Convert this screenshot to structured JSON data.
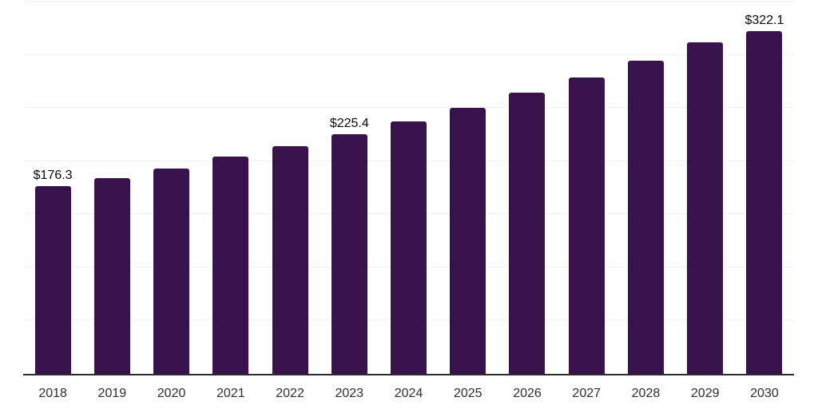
{
  "chart_data": {
    "type": "bar",
    "title": "",
    "xlabel": "",
    "ylabel": "",
    "categories": [
      "2018",
      "2019",
      "2020",
      "2021",
      "2022",
      "2023",
      "2024",
      "2025",
      "2026",
      "2027",
      "2028",
      "2029",
      "2030"
    ],
    "values": [
      176.3,
      184.2,
      193.2,
      204.0,
      213.8,
      225.4,
      237.5,
      250.1,
      264.3,
      278.6,
      294.6,
      312.0,
      322.1
    ],
    "data_labels": [
      "$176.3",
      "",
      "",
      "",
      "",
      "$225.4",
      "",
      "",
      "",
      "",
      "",
      "",
      "$322.1"
    ],
    "value_prefix": "$",
    "ylim": [
      0,
      350
    ],
    "grid_step": 50,
    "grid": "horizontal",
    "legend": "none",
    "y_axis_labels": "none",
    "colors": {
      "bar": "#38124a",
      "gridline": "#f1f1f3",
      "axis_line": "#2a2a33",
      "data_label_text": "#0a0a0a",
      "tick_label_text": "#2e2e2e",
      "background": "#ffffff"
    }
  }
}
